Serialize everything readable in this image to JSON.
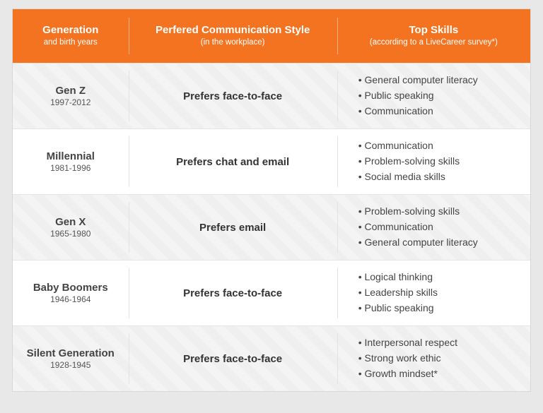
{
  "table": {
    "header_bg": "#f37321",
    "columns": {
      "generation": {
        "title": "Generation",
        "sub": "and birth years"
      },
      "communication": {
        "title": "Perfered Communication Style",
        "sub": "(in the workplace)"
      },
      "skills": {
        "title": "Top Skills",
        "sub": "(according to a LiveCareer survey*)"
      }
    },
    "rows": [
      {
        "alt": true,
        "generation": "Gen Z",
        "years": "1997-2012",
        "communication": "Prefers face-to-face",
        "skills": [
          "General computer literacy",
          "Public speaking",
          "Communication"
        ]
      },
      {
        "alt": false,
        "generation": "Millennial",
        "years": "1981-1996",
        "communication": "Prefers chat and email",
        "skills": [
          "Communication",
          "Problem-solving skills",
          "Social media skills"
        ]
      },
      {
        "alt": true,
        "generation": "Gen X",
        "years": "1965-1980",
        "communication": "Prefers email",
        "skills": [
          "Problem-solving skills",
          "Communication",
          "General computer literacy"
        ]
      },
      {
        "alt": false,
        "generation": "Baby Boomers",
        "years": "1946-1964",
        "communication": "Prefers face-to-face",
        "skills": [
          "Logical thinking",
          "Leadership skills",
          "Public speaking"
        ]
      },
      {
        "alt": true,
        "generation": "Silent Generation",
        "years": "1928-1945",
        "communication": "Prefers face-to-face",
        "skills": [
          "Interpersonal respect",
          "Strong work ethic",
          "Growth mindset*"
        ]
      }
    ]
  }
}
